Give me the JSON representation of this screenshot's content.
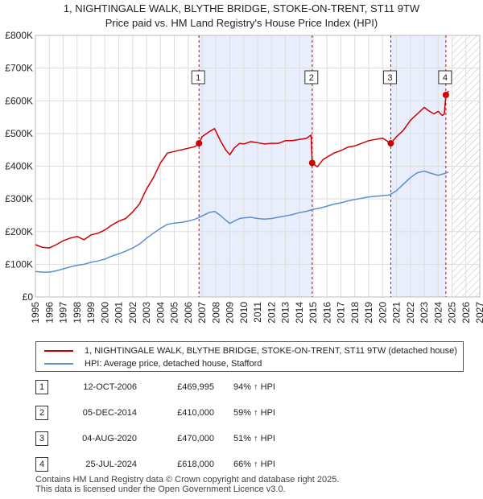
{
  "title": {
    "line1": "1, NIGHTINGALE WALK, BLYTHE BRIDGE, STOKE-ON-TRENT, ST11 9TW",
    "line2": "Price paid vs. HM Land Registry's House Price Index (HPI)"
  },
  "legend": {
    "property_label": "1, NIGHTINGALE WALK, BLYTHE BRIDGE, STOKE-ON-TRENT, ST11 9TW (detached house)",
    "hpi_label": "HPI: Average price, detached house, Stafford",
    "property_color": "#cc0000",
    "hpi_color": "#5b8fd0"
  },
  "sales": [
    {
      "num": "1",
      "date": "12-OCT-2006",
      "price": "£469,995",
      "hpi": "94% ↑ HPI"
    },
    {
      "num": "2",
      "date": "05-DEC-2014",
      "price": "£410,000",
      "hpi": "59% ↑ HPI"
    },
    {
      "num": "3",
      "date": "04-AUG-2020",
      "price": "£470,000",
      "hpi": "51% ↑ HPI"
    },
    {
      "num": "4",
      "date": "25-JUL-2024",
      "price": "£618,000",
      "hpi": "66% ↑ HPI"
    }
  ],
  "footer": {
    "line1": "Contains HM Land Registry data © Crown copyright and database right 2025.",
    "line2": "This data is licensed under the Open Government Licence v3.0."
  },
  "chart_data": {
    "type": "line",
    "title": "1, NIGHTINGALE WALK, BLYTHE BRIDGE, STOKE-ON-TRENT, ST11 9TW — Price paid vs. HM Land Registry's House Price Index (HPI)",
    "xlabel": "",
    "ylabel": "",
    "xlim": [
      1995,
      2027
    ],
    "ylim": [
      0,
      800000
    ],
    "y_ticks": [
      0,
      100000,
      200000,
      300000,
      400000,
      500000,
      600000,
      700000,
      800000
    ],
    "y_tick_labels": [
      "£0",
      "£100K",
      "£200K",
      "£300K",
      "£400K",
      "£500K",
      "£600K",
      "£700K",
      "£800K"
    ],
    "x_ticks": [
      "1995",
      "1996",
      "1997",
      "1998",
      "1999",
      "2000",
      "2001",
      "2002",
      "2003",
      "2004",
      "2005",
      "2006",
      "2007",
      "2008",
      "2009",
      "2010",
      "2011",
      "2012",
      "2013",
      "2014",
      "2015",
      "2016",
      "2017",
      "2018",
      "2019",
      "2020",
      "2021",
      "2022",
      "2023",
      "2024",
      "2025",
      "2026",
      "2027"
    ],
    "grid": true,
    "shaded_periods": [
      {
        "from": 2006.78,
        "to": 2014.93,
        "color": "#e8eefb"
      },
      {
        "from": 2020.59,
        "to": 2024.56,
        "color": "#e8eefb"
      }
    ],
    "forecast_from": 2025.0,
    "series": [
      {
        "name": "1, NIGHTINGALE WALK, BLYTHE BRIDGE, STOKE-ON-TRENT, ST11 9TW (detached house)",
        "color": "#cc0000",
        "x": [
          1995.0,
          1995.5,
          1996.0,
          1996.5,
          1997.0,
          1997.5,
          1998.0,
          1998.5,
          1999.0,
          1999.5,
          2000.0,
          2000.5,
          2001.0,
          2001.5,
          2002.0,
          2002.5,
          2003.0,
          2003.5,
          2004.0,
          2004.5,
          2005.0,
          2005.5,
          2006.0,
          2006.5,
          2006.78,
          2007.0,
          2007.5,
          2007.9,
          2008.3,
          2008.7,
          2009.0,
          2009.3,
          2009.7,
          2010.0,
          2010.5,
          2011.0,
          2011.5,
          2012.0,
          2012.5,
          2013.0,
          2013.5,
          2014.0,
          2014.5,
          2014.85,
          2014.93,
          2015.3,
          2015.7,
          2016.0,
          2016.5,
          2017.0,
          2017.5,
          2018.0,
          2018.5,
          2019.0,
          2019.5,
          2020.0,
          2020.59,
          2021.0,
          2021.5,
          2022.0,
          2022.5,
          2023.0,
          2023.3,
          2023.7,
          2024.0,
          2024.3,
          2024.45,
          2024.56,
          2024.75
        ],
        "values": [
          160000,
          152000,
          150000,
          160000,
          172000,
          180000,
          185000,
          175000,
          190000,
          195000,
          205000,
          220000,
          232000,
          240000,
          260000,
          285000,
          330000,
          365000,
          410000,
          440000,
          445000,
          450000,
          455000,
          460000,
          469995,
          490000,
          505000,
          515000,
          480000,
          450000,
          435000,
          455000,
          470000,
          468000,
          475000,
          472000,
          468000,
          470000,
          470000,
          478000,
          478000,
          482000,
          485000,
          495000,
          410000,
          398000,
          420000,
          428000,
          440000,
          448000,
          458000,
          462000,
          470000,
          478000,
          482000,
          486000,
          470000,
          490000,
          510000,
          540000,
          560000,
          580000,
          570000,
          560000,
          568000,
          555000,
          560000,
          618000,
          630000
        ]
      },
      {
        "name": "HPI: Average price, detached house, Stafford",
        "color": "#5b8fd0",
        "x": [
          1995.0,
          1995.5,
          1996.0,
          1996.5,
          1997.0,
          1997.5,
          1998.0,
          1998.5,
          1999.0,
          1999.5,
          2000.0,
          2000.5,
          2001.0,
          2001.5,
          2002.0,
          2002.5,
          2003.0,
          2003.5,
          2004.0,
          2004.5,
          2005.0,
          2005.5,
          2006.0,
          2006.5,
          2007.0,
          2007.5,
          2007.9,
          2008.3,
          2008.7,
          2009.0,
          2009.3,
          2009.7,
          2010.0,
          2010.5,
          2011.0,
          2011.5,
          2012.0,
          2012.5,
          2013.0,
          2013.5,
          2014.0,
          2014.5,
          2015.0,
          2015.5,
          2016.0,
          2016.5,
          2017.0,
          2017.5,
          2018.0,
          2018.5,
          2019.0,
          2019.5,
          2020.0,
          2020.5,
          2021.0,
          2021.5,
          2022.0,
          2022.5,
          2023.0,
          2023.5,
          2024.0,
          2024.5,
          2024.75
        ],
        "values": [
          78000,
          76000,
          76000,
          80000,
          86000,
          92000,
          97000,
          100000,
          106000,
          110000,
          116000,
          125000,
          132000,
          140000,
          150000,
          162000,
          180000,
          195000,
          210000,
          222000,
          226000,
          228000,
          232000,
          238000,
          248000,
          258000,
          262000,
          250000,
          235000,
          225000,
          232000,
          240000,
          242000,
          244000,
          240000,
          238000,
          240000,
          244000,
          248000,
          252000,
          258000,
          262000,
          268000,
          272000,
          278000,
          284000,
          288000,
          294000,
          298000,
          302000,
          306000,
          308000,
          310000,
          312000,
          325000,
          345000,
          365000,
          380000,
          385000,
          378000,
          372000,
          378000,
          382000
        ]
      }
    ],
    "annotations": [
      {
        "label": "1",
        "x": 2006.78,
        "value": 469995
      },
      {
        "label": "2",
        "x": 2014.93,
        "value": 410000
      },
      {
        "label": "3",
        "x": 2020.59,
        "value": 470000
      },
      {
        "label": "4",
        "x": 2024.56,
        "value": 618000
      }
    ]
  }
}
